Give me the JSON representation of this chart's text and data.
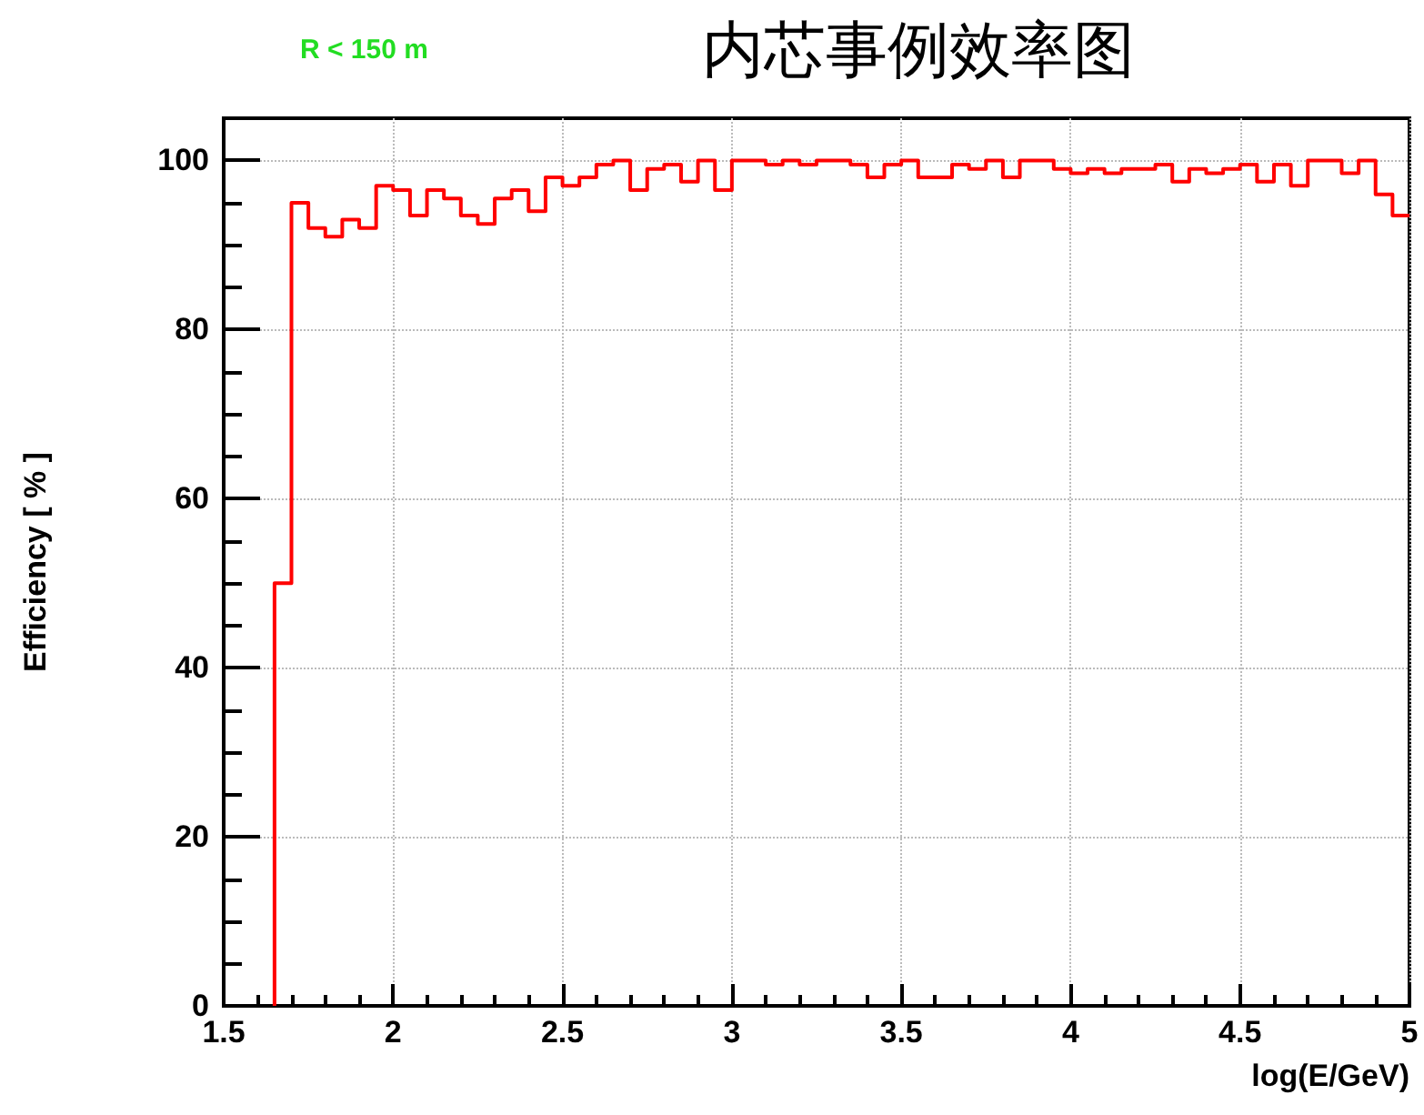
{
  "chart_data": {
    "type": "histogram",
    "title": "内芯事例效率图",
    "annotations": [
      "R < 150 m"
    ],
    "xlabel": "log(E/GeV)",
    "ylabel": "Efficiency [ % ]",
    "bins": [
      1.65,
      1.7,
      1.75,
      1.8,
      1.85,
      1.9,
      1.95,
      2,
      2.05,
      2.1,
      2.15,
      2.2,
      2.25,
      2.3,
      2.35,
      2.4,
      2.45,
      2.5,
      2.55,
      2.6,
      2.65,
      2.7,
      2.75,
      2.8,
      2.85,
      2.9,
      2.95,
      3,
      3.05,
      3.1,
      3.15,
      3.2,
      3.25,
      3.3,
      3.35,
      3.4,
      3.45,
      3.5,
      3.55,
      3.6,
      3.65,
      3.7,
      3.75,
      3.8,
      3.85,
      3.9,
      3.95,
      4,
      4.05,
      4.1,
      4.15,
      4.2,
      4.25,
      4.3,
      4.35,
      4.4,
      4.45,
      4.5,
      4.55,
      4.6,
      4.65,
      4.7,
      4.75,
      4.8,
      4.85,
      4.9,
      4.95,
      5
    ],
    "values": [
      50,
      95,
      92,
      91,
      93,
      92,
      97,
      96.5,
      93.5,
      96.5,
      95.5,
      93.5,
      92.5,
      95.5,
      96.5,
      94,
      98,
      97,
      98,
      99.5,
      100,
      96.5,
      99,
      99.5,
      97.5,
      100,
      96.5,
      100,
      100,
      99.5,
      100,
      99.5,
      100,
      100,
      99.5,
      98,
      99.5,
      100,
      98,
      98,
      99.5,
      99,
      100,
      98,
      100,
      100,
      99,
      98.5,
      99,
      98.5,
      99,
      99,
      99.5,
      97.5,
      99,
      98.5,
      99,
      99.5,
      97.5,
      99.5,
      97,
      100,
      100,
      98.5,
      100,
      96,
      93.5
    ],
    "color": "#ff0000",
    "xlim": [
      1.5,
      5
    ],
    "xticks": [
      1.5,
      2,
      2.5,
      3,
      3.5,
      4,
      4.5,
      5
    ],
    "ylim": [
      0,
      105
    ],
    "yticks": [
      0,
      20,
      40,
      60,
      80,
      100
    ],
    "grid": true
  }
}
